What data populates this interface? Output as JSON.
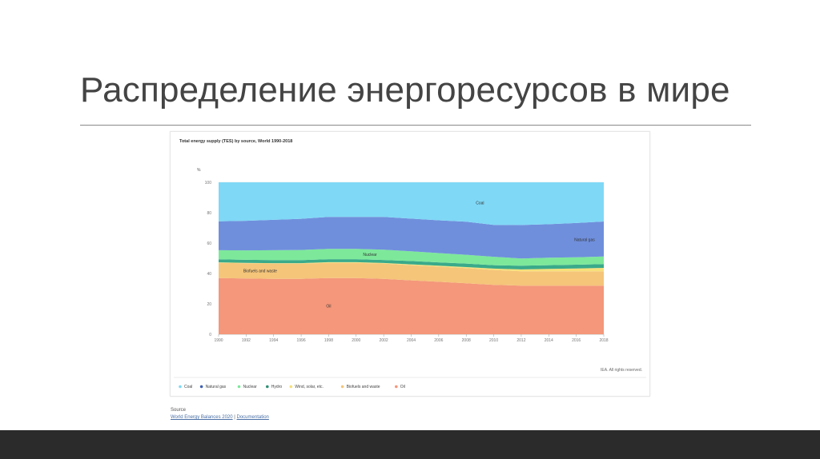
{
  "slide": {
    "title": "Распределение энергоресурсов в мире"
  },
  "source": {
    "label": "Source",
    "link1": "World Energy Balances 2020",
    "separator": " | ",
    "link2": "Documentation"
  },
  "chart_data": {
    "type": "area",
    "stacked": true,
    "title": "Total energy supply (TES) by source, World 1990-2018",
    "ylabel": "%",
    "ylim": [
      0,
      100
    ],
    "yticks": [
      0,
      20,
      40,
      60,
      80,
      100
    ],
    "x": [
      1990,
      1992,
      1994,
      1996,
      1998,
      2000,
      2002,
      2004,
      2006,
      2008,
      2010,
      2012,
      2014,
      2016,
      2018
    ],
    "xticks": [
      "1990",
      "1992",
      "1994",
      "1996",
      "1998",
      "2000",
      "2002",
      "2004",
      "2006",
      "2008",
      "2010",
      "2012",
      "2014",
      "2016",
      "2018"
    ],
    "grid": true,
    "legend_position": "bottom",
    "copyright": "IEA. All rights reserved.",
    "series": [
      {
        "name": "Oil",
        "color": "#f4977a",
        "label": "Oil",
        "values": [
          37,
          36.7,
          36.5,
          36.5,
          37,
          37,
          36.5,
          35.5,
          34.5,
          33.5,
          32.5,
          32,
          32,
          32,
          32
        ]
      },
      {
        "name": "Biofuels and waste",
        "color": "#f5c57a",
        "label": "Biofuels and waste",
        "values": [
          10,
          10,
          10,
          10,
          10,
          10,
          10,
          10,
          10,
          10,
          9.8,
          9.5,
          9.5,
          9.5,
          9.5
        ]
      },
      {
        "name": "Wind, solar, etc.",
        "color": "#f7e07a",
        "values": [
          0.3,
          0.3,
          0.3,
          0.3,
          0.4,
          0.4,
          0.4,
          0.5,
          0.6,
          0.7,
          0.9,
          1.2,
          1.5,
          1.8,
          2.2
        ]
      },
      {
        "name": "Hydro",
        "color": "#3aaa8a",
        "values": [
          2,
          2,
          2,
          2,
          2,
          2,
          2,
          2.2,
          2.2,
          2.3,
          2.3,
          2.4,
          2.5,
          2.5,
          2.5
        ]
      },
      {
        "name": "Nuclear",
        "color": "#7de89a",
        "label": "Nuclear",
        "values": [
          6,
          6.2,
          6.5,
          6.7,
          6.8,
          6.8,
          6.8,
          6.4,
          6.1,
          5.8,
          5.5,
          4.8,
          4.9,
          4.9,
          5
        ]
      },
      {
        "name": "Natural gas",
        "color": "#6f8fdc",
        "label": "Natural gas",
        "values": [
          19,
          19.5,
          20,
          20.5,
          21,
          21,
          21.5,
          21.5,
          21.6,
          21.8,
          21,
          22,
          22,
          22.5,
          23
        ]
      },
      {
        "name": "Coal",
        "color": "#7fd8f6",
        "label": "Coal",
        "values": [
          25.7,
          25.3,
          24.7,
          24,
          22.8,
          22.8,
          22.8,
          23.9,
          25,
          25.9,
          28,
          28.1,
          27.6,
          26.8,
          25.8
        ]
      }
    ],
    "legend_order": [
      "Coal",
      "Natural gas",
      "Nuclear",
      "Hydro",
      "Wind, solar, etc.",
      "Biofuels and waste",
      "Oil"
    ],
    "legend_colors": [
      "#7fd8f6",
      "#3e5fb0",
      "#7de89a",
      "#2f8f74",
      "#f7e07a",
      "#f5c57a",
      "#f4977a"
    ]
  }
}
